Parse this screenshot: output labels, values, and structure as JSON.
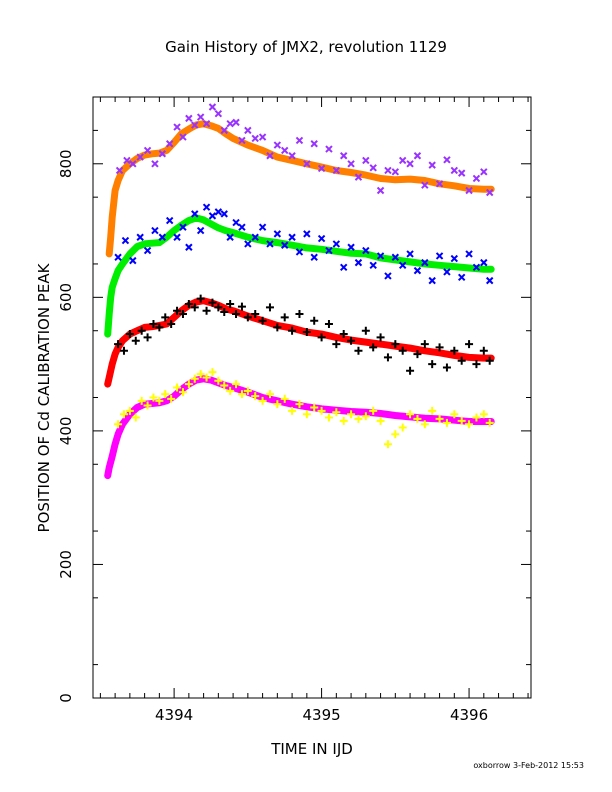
{
  "chart_data": {
    "type": "scatter",
    "title": "Gain History of JMX2, revolution 1129",
    "xlabel": "TIME IN IJD",
    "ylabel": "POSITION OF Cd CALIBRATION PEAK",
    "xlim": [
      4393.45,
      4396.42
    ],
    "ylim": [
      0,
      900
    ],
    "x_ticks": [
      {
        "value": 4394,
        "label": "4394"
      },
      {
        "value": 4395,
        "label": "4395"
      },
      {
        "value": 4396,
        "label": "4396"
      }
    ],
    "y_ticks": [
      {
        "value": 0,
        "label": "0"
      },
      {
        "value": 200,
        "label": "200"
      },
      {
        "value": 400,
        "label": "400"
      },
      {
        "value": 600,
        "label": "600"
      },
      {
        "value": 800,
        "label": "800"
      }
    ],
    "grid": false,
    "legend": "none",
    "footer": "oxborrow 3-Feb-2012 15:53",
    "series": [
      {
        "color": "#ff8000",
        "marker": "curve",
        "x": [
          4393.56,
          4393.57,
          4393.58,
          4393.6,
          4393.62,
          4393.65,
          4393.7,
          4393.75,
          4393.8,
          4393.85,
          4393.9,
          4393.95,
          4394.0,
          4394.05,
          4394.1,
          4394.15,
          4394.2,
          4394.25,
          4394.3,
          4394.35,
          4394.4,
          4394.5,
          4394.6,
          4394.7,
          4394.8,
          4394.9,
          4395.0,
          4395.1,
          4395.2,
          4395.3,
          4395.4,
          4395.5,
          4395.6,
          4395.7,
          4395.8,
          4395.9,
          4396.0,
          4396.1,
          4396.15
        ],
        "values": [
          665,
          690,
          720,
          760,
          775,
          790,
          800,
          808,
          813,
          815,
          816,
          820,
          832,
          845,
          852,
          858,
          860,
          857,
          853,
          845,
          838,
          828,
          820,
          810,
          805,
          800,
          795,
          790,
          787,
          783,
          778,
          776,
          777,
          775,
          770,
          767,
          763,
          762,
          762
        ]
      },
      {
        "color": "#9933ff",
        "marker": "x",
        "x": [
          4393.63,
          4393.68,
          4393.72,
          4393.77,
          4393.82,
          4393.87,
          4393.92,
          4393.97,
          4394.02,
          4394.06,
          4394.1,
          4394.14,
          4394.18,
          4394.22,
          4394.26,
          4394.3,
          4394.34,
          4394.38,
          4394.42,
          4394.46,
          4394.5,
          4394.55,
          4394.6,
          4394.65,
          4394.7,
          4394.75,
          4394.8,
          4394.85,
          4394.9,
          4394.95,
          4395.0,
          4395.05,
          4395.1,
          4395.15,
          4395.2,
          4395.25,
          4395.3,
          4395.35,
          4395.4,
          4395.45,
          4395.5,
          4395.55,
          4395.6,
          4395.65,
          4395.7,
          4395.75,
          4395.8,
          4395.85,
          4395.9,
          4395.95,
          4396.0,
          4396.05,
          4396.1,
          4396.14
        ],
        "values": [
          790,
          805,
          800,
          810,
          820,
          800,
          815,
          830,
          855,
          840,
          868,
          858,
          870,
          860,
          885,
          875,
          850,
          860,
          862,
          835,
          850,
          838,
          840,
          812,
          828,
          820,
          812,
          835,
          800,
          830,
          793,
          822,
          790,
          812,
          800,
          780,
          805,
          794,
          760,
          790,
          788,
          805,
          800,
          812,
          768,
          798,
          770,
          806,
          790,
          786,
          760,
          778,
          788,
          757
        ]
      },
      {
        "color": "#00ee00",
        "marker": "curve",
        "x": [
          4393.55,
          4393.56,
          4393.57,
          4393.58,
          4393.6,
          4393.62,
          4393.65,
          4393.7,
          4393.75,
          4393.8,
          4393.85,
          4393.9,
          4393.95,
          4394.0,
          4394.05,
          4394.1,
          4394.15,
          4394.2,
          4394.25,
          4394.3,
          4394.35,
          4394.4,
          4394.5,
          4394.6,
          4394.7,
          4394.8,
          4394.9,
          4395.0,
          4395.1,
          4395.2,
          4395.3,
          4395.4,
          4395.5,
          4395.6,
          4395.7,
          4395.8,
          4395.9,
          4396.0,
          4396.1,
          4396.15
        ],
        "values": [
          545,
          575,
          600,
          615,
          628,
          640,
          650,
          665,
          676,
          680,
          681,
          682,
          690,
          700,
          708,
          715,
          719,
          716,
          710,
          704,
          700,
          697,
          690,
          685,
          682,
          678,
          674,
          672,
          669,
          666,
          665,
          659,
          656,
          653,
          650,
          648,
          646,
          644,
          642,
          642
        ]
      },
      {
        "color": "#0000ff",
        "marker": "x",
        "x": [
          4393.62,
          4393.67,
          4393.72,
          4393.77,
          4393.82,
          4393.87,
          4393.92,
          4393.97,
          4394.02,
          4394.06,
          4394.1,
          4394.14,
          4394.18,
          4394.22,
          4394.26,
          4394.3,
          4394.34,
          4394.38,
          4394.42,
          4394.46,
          4394.5,
          4394.55,
          4394.6,
          4394.65,
          4394.7,
          4394.75,
          4394.8,
          4394.85,
          4394.9,
          4394.95,
          4395.0,
          4395.05,
          4395.1,
          4395.15,
          4395.2,
          4395.25,
          4395.3,
          4395.35,
          4395.4,
          4395.45,
          4395.5,
          4395.55,
          4395.6,
          4395.65,
          4395.7,
          4395.75,
          4395.8,
          4395.85,
          4395.9,
          4395.95,
          4396.0,
          4396.05,
          4396.1,
          4396.14
        ],
        "values": [
          660,
          685,
          655,
          690,
          670,
          700,
          690,
          715,
          690,
          705,
          675,
          725,
          700,
          735,
          722,
          728,
          725,
          690,
          712,
          705,
          680,
          690,
          705,
          680,
          695,
          678,
          690,
          668,
          695,
          660,
          688,
          670,
          680,
          645,
          675,
          652,
          670,
          648,
          662,
          632,
          660,
          648,
          665,
          640,
          652,
          625,
          662,
          638,
          658,
          630,
          665,
          645,
          652,
          625
        ]
      },
      {
        "color": "#ff0000",
        "marker": "curve",
        "x": [
          4393.55,
          4393.56,
          4393.58,
          4393.6,
          4393.62,
          4393.65,
          4393.7,
          4393.75,
          4393.8,
          4393.85,
          4393.9,
          4393.95,
          4394.0,
          4394.05,
          4394.1,
          4394.15,
          4394.2,
          4394.25,
          4394.3,
          4394.35,
          4394.4,
          4394.5,
          4394.6,
          4394.7,
          4394.8,
          4394.9,
          4395.0,
          4395.1,
          4395.2,
          4395.3,
          4395.4,
          4395.5,
          4395.6,
          4395.7,
          4395.8,
          4395.9,
          4396.0,
          4396.1,
          4396.15
        ],
        "values": [
          470,
          480,
          500,
          515,
          525,
          535,
          545,
          550,
          555,
          556,
          558,
          560,
          570,
          580,
          588,
          593,
          595,
          592,
          588,
          583,
          580,
          572,
          565,
          558,
          554,
          548,
          545,
          540,
          536,
          533,
          530,
          527,
          524,
          520,
          517,
          513,
          510,
          509,
          509
        ]
      },
      {
        "color": "#000000",
        "marker": "plus",
        "x": [
          4393.62,
          4393.66,
          4393.7,
          4393.74,
          4393.78,
          4393.82,
          4393.86,
          4393.9,
          4393.94,
          4393.98,
          4394.02,
          4394.06,
          4394.1,
          4394.14,
          4394.18,
          4394.22,
          4394.26,
          4394.3,
          4394.34,
          4394.38,
          4394.42,
          4394.46,
          4394.5,
          4394.55,
          4394.6,
          4394.65,
          4394.7,
          4394.75,
          4394.8,
          4394.85,
          4394.9,
          4394.95,
          4395.0,
          4395.05,
          4395.1,
          4395.15,
          4395.2,
          4395.25,
          4395.3,
          4395.35,
          4395.4,
          4395.45,
          4395.5,
          4395.55,
          4395.6,
          4395.65,
          4395.7,
          4395.75,
          4395.8,
          4395.85,
          4395.9,
          4395.95,
          4396.0,
          4396.05,
          4396.1,
          4396.14
        ],
        "values": [
          530,
          520,
          545,
          535,
          550,
          540,
          560,
          555,
          570,
          560,
          580,
          575,
          590,
          585,
          598,
          580,
          592,
          585,
          578,
          590,
          575,
          586,
          570,
          575,
          565,
          585,
          555,
          570,
          550,
          575,
          548,
          565,
          540,
          560,
          530,
          545,
          535,
          520,
          550,
          525,
          540,
          510,
          530,
          520,
          490,
          515,
          530,
          500,
          525,
          495,
          520,
          505,
          530,
          500,
          520,
          505
        ]
      },
      {
        "color": "#ff00ff",
        "marker": "curve",
        "x": [
          4393.55,
          4393.56,
          4393.58,
          4393.6,
          4393.62,
          4393.65,
          4393.7,
          4393.75,
          4393.8,
          4393.85,
          4393.9,
          4393.95,
          4394.0,
          4394.05,
          4394.1,
          4394.15,
          4394.2,
          4394.25,
          4394.3,
          4394.35,
          4394.4,
          4394.5,
          4394.6,
          4394.7,
          4394.8,
          4394.9,
          4395.0,
          4395.1,
          4395.2,
          4395.3,
          4395.4,
          4395.5,
          4395.6,
          4395.7,
          4395.8,
          4395.9,
          4396.0,
          4396.1,
          4396.15
        ],
        "values": [
          333,
          345,
          362,
          380,
          395,
          410,
          425,
          435,
          440,
          441,
          442,
          445,
          452,
          462,
          470,
          476,
          478,
          476,
          472,
          468,
          465,
          458,
          450,
          445,
          440,
          436,
          433,
          431,
          429,
          428,
          426,
          423,
          421,
          419,
          418,
          416,
          414,
          414,
          414
        ]
      },
      {
        "color": "#ffff00",
        "marker": "plus",
        "x": [
          4393.62,
          4393.66,
          4393.7,
          4393.74,
          4393.78,
          4393.82,
          4393.86,
          4393.9,
          4393.94,
          4393.98,
          4394.02,
          4394.06,
          4394.1,
          4394.14,
          4394.18,
          4394.22,
          4394.26,
          4394.3,
          4394.34,
          4394.38,
          4394.42,
          4394.46,
          4394.5,
          4394.55,
          4394.6,
          4394.65,
          4394.7,
          4394.75,
          4394.8,
          4394.85,
          4394.9,
          4394.95,
          4395.0,
          4395.05,
          4395.1,
          4395.15,
          4395.2,
          4395.25,
          4395.3,
          4395.35,
          4395.4,
          4395.45,
          4395.5,
          4395.55,
          4395.6,
          4395.65,
          4395.7,
          4395.75,
          4395.8,
          4395.85,
          4395.9,
          4395.95,
          4396.0,
          4396.05,
          4396.1,
          4396.14
        ],
        "values": [
          410,
          425,
          430,
          420,
          445,
          438,
          450,
          445,
          455,
          448,
          465,
          458,
          470,
          478,
          485,
          480,
          488,
          475,
          468,
          460,
          470,
          455,
          460,
          452,
          445,
          455,
          440,
          448,
          430,
          440,
          425,
          435,
          430,
          420,
          428,
          415,
          425,
          418,
          422,
          430,
          415,
          380,
          395,
          405,
          425,
          418,
          410,
          430,
          418,
          412,
          425,
          415,
          410,
          420,
          425,
          412
        ]
      }
    ]
  }
}
